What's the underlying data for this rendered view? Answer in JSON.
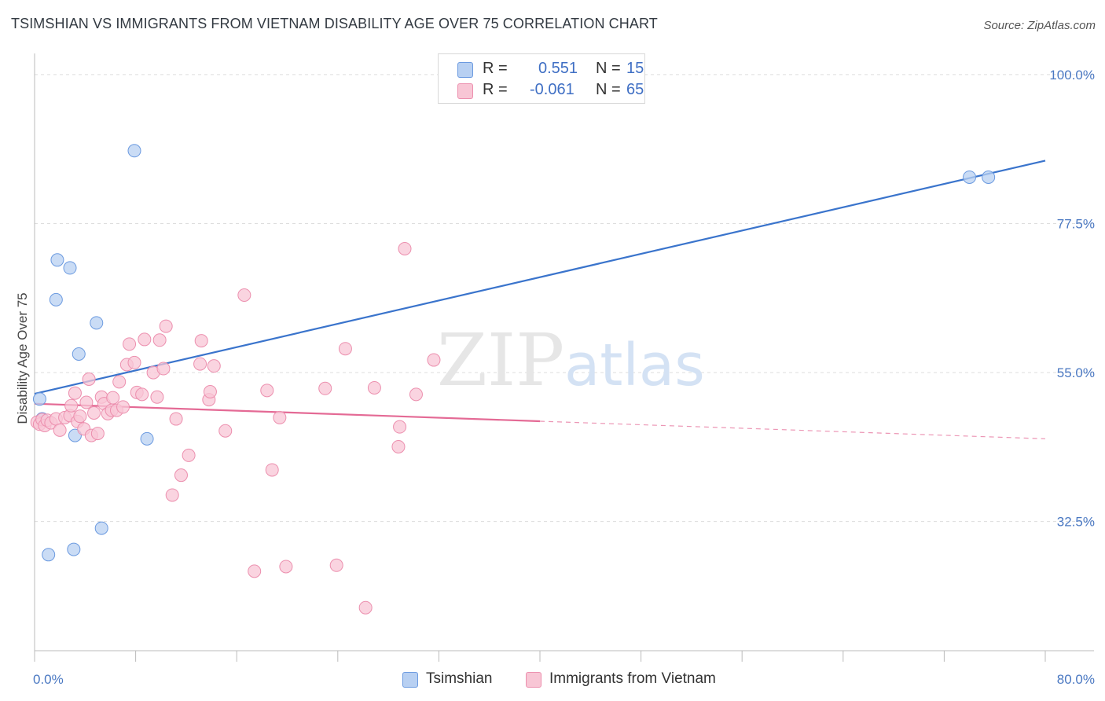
{
  "header": {
    "title": "TSIMSHIAN VS IMMIGRANTS FROM VIETNAM DISABILITY AGE OVER 75 CORRELATION CHART",
    "source": "Source: ZipAtlas.com"
  },
  "legend": {
    "rows": [
      {
        "r_label": "R =",
        "r_value": "0.551",
        "n_label": "N =",
        "n_value": "15"
      },
      {
        "r_label": "R =",
        "r_value": "-0.061",
        "n_label": "N =",
        "n_value": "65"
      }
    ]
  },
  "watermark": {
    "zip": "ZIP",
    "atlas": "atlas"
  },
  "colors": {
    "blue_fill": "#b8d0f2",
    "blue_stroke": "#6b9ae0",
    "blue_line": "#3a74cc",
    "pink_fill": "#f8c6d5",
    "pink_stroke": "#ec8fae",
    "pink_line": "#e46a95",
    "grid": "#dddddd",
    "tick_label": "#4a78c2"
  },
  "chart_data": {
    "type": "scatter",
    "title": "TSIMSHIAN VS IMMIGRANTS FROM VIETNAM DISABILITY AGE OVER 75 CORRELATION CHART",
    "xlabel": "",
    "ylabel": "Disability Age Over 75",
    "xlim": [
      0,
      80
    ],
    "ylim": [
      13,
      102
    ],
    "x_tick_labels": [
      "0.0%",
      "80.0%"
    ],
    "y_ticks": [
      32.5,
      55.0,
      77.5,
      100.0
    ],
    "y_tick_labels": [
      "32.5%",
      "55.0%",
      "77.5%",
      "100.0%"
    ],
    "series": [
      {
        "name": "Tsimshian",
        "color": "blue",
        "points": [
          [
            0.6,
            48.0
          ],
          [
            0.4,
            51.0
          ],
          [
            1.1,
            27.5
          ],
          [
            1.7,
            66.0
          ],
          [
            1.8,
            72.0
          ],
          [
            2.8,
            70.8
          ],
          [
            3.1,
            28.3
          ],
          [
            3.2,
            45.5
          ],
          [
            3.5,
            57.8
          ],
          [
            4.9,
            62.5
          ],
          [
            5.3,
            31.5
          ],
          [
            7.9,
            88.5
          ],
          [
            8.9,
            45.0
          ],
          [
            74.0,
            84.5
          ],
          [
            75.5,
            84.5
          ]
        ],
        "trend": {
          "x": [
            0,
            80
          ],
          "y": [
            51.8,
            87.0
          ],
          "solid_to": 80
        }
      },
      {
        "name": "Immigrants from Vietnam",
        "color": "pink",
        "points": [
          [
            0.2,
            47.5
          ],
          [
            0.4,
            47.2
          ],
          [
            0.6,
            47.9
          ],
          [
            0.8,
            47.0
          ],
          [
            1.0,
            47.8
          ],
          [
            1.3,
            47.4
          ],
          [
            1.7,
            48.0
          ],
          [
            2.0,
            46.3
          ],
          [
            2.4,
            48.2
          ],
          [
            2.8,
            48.5
          ],
          [
            2.9,
            50.0
          ],
          [
            3.2,
            51.9
          ],
          [
            3.4,
            47.6
          ],
          [
            3.6,
            48.4
          ],
          [
            3.9,
            46.5
          ],
          [
            4.1,
            50.5
          ],
          [
            4.3,
            54.0
          ],
          [
            4.5,
            45.5
          ],
          [
            4.7,
            48.9
          ],
          [
            5.0,
            45.8
          ],
          [
            5.3,
            51.3
          ],
          [
            5.5,
            50.3
          ],
          [
            5.8,
            48.8
          ],
          [
            6.1,
            49.3
          ],
          [
            6.2,
            51.2
          ],
          [
            6.5,
            49.3
          ],
          [
            6.7,
            53.6
          ],
          [
            7.0,
            49.8
          ],
          [
            7.3,
            56.2
          ],
          [
            7.5,
            59.3
          ],
          [
            7.9,
            56.5
          ],
          [
            8.1,
            52.0
          ],
          [
            8.5,
            51.7
          ],
          [
            8.7,
            60.0
          ],
          [
            9.4,
            55.0
          ],
          [
            9.7,
            51.3
          ],
          [
            9.9,
            59.9
          ],
          [
            10.2,
            55.6
          ],
          [
            10.4,
            62.0
          ],
          [
            10.9,
            36.5
          ],
          [
            11.2,
            48.0
          ],
          [
            11.6,
            39.5
          ],
          [
            12.2,
            42.5
          ],
          [
            13.1,
            56.3
          ],
          [
            13.2,
            59.8
          ],
          [
            13.8,
            50.9
          ],
          [
            13.9,
            52.1
          ],
          [
            14.2,
            56.0
          ],
          [
            15.1,
            46.2
          ],
          [
            16.6,
            66.7
          ],
          [
            17.4,
            25.0
          ],
          [
            18.4,
            52.3
          ],
          [
            18.8,
            40.3
          ],
          [
            19.4,
            48.2
          ],
          [
            19.9,
            25.7
          ],
          [
            23.0,
            52.6
          ],
          [
            23.9,
            25.9
          ],
          [
            24.6,
            58.6
          ],
          [
            26.2,
            19.5
          ],
          [
            26.9,
            52.7
          ],
          [
            28.8,
            43.8
          ],
          [
            28.9,
            46.8
          ],
          [
            29.3,
            73.7
          ],
          [
            30.2,
            51.7
          ],
          [
            31.6,
            56.9
          ]
        ],
        "trend": {
          "x": [
            0,
            80
          ],
          "y": [
            50.3,
            45.0
          ],
          "solid_to": 40
        }
      }
    ]
  },
  "bottom_legend": {
    "items": [
      {
        "label": "Tsimshian"
      },
      {
        "label": "Immigrants from Vietnam"
      }
    ]
  }
}
